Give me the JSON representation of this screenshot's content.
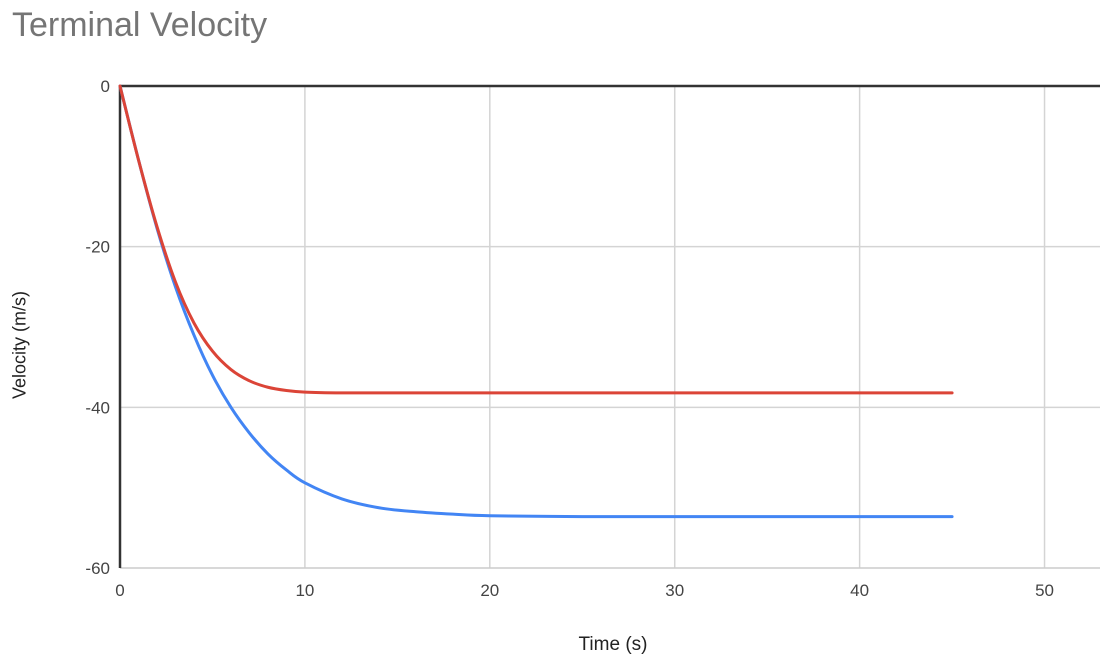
{
  "chart_data": {
    "type": "line",
    "title": "Terminal Velocity",
    "xlabel": "Time (s)",
    "ylabel": "Velocity (m/s)",
    "xlim": [
      0,
      53
    ],
    "ylim": [
      -60,
      0
    ],
    "x_ticks": [
      0,
      10,
      20,
      30,
      40,
      50
    ],
    "y_ticks": [
      0,
      -20,
      -40,
      -60
    ],
    "grid": true,
    "legend": "none",
    "x": [
      0,
      1,
      2,
      3,
      4,
      5,
      6,
      7,
      8,
      9,
      10,
      12,
      14,
      16,
      18,
      20,
      25,
      30,
      35,
      40,
      45
    ],
    "series": [
      {
        "color": "#4285f4",
        "values": [
          0,
          -9.2,
          -17.7,
          -25.0,
          -31.0,
          -36.0,
          -40.0,
          -43.2,
          -45.8,
          -47.8,
          -49.4,
          -51.4,
          -52.5,
          -53.0,
          -53.3,
          -53.5,
          -53.6,
          -53.6,
          -53.6,
          -53.6,
          -53.6
        ]
      },
      {
        "color": "#db4437",
        "values": [
          0,
          -9.2,
          -17.5,
          -24.4,
          -29.5,
          -33.0,
          -35.3,
          -36.7,
          -37.5,
          -37.9,
          -38.1,
          -38.2,
          -38.2,
          -38.2,
          -38.2,
          -38.2,
          -38.2,
          -38.2,
          -38.2,
          -38.2,
          -38.2
        ]
      }
    ]
  }
}
